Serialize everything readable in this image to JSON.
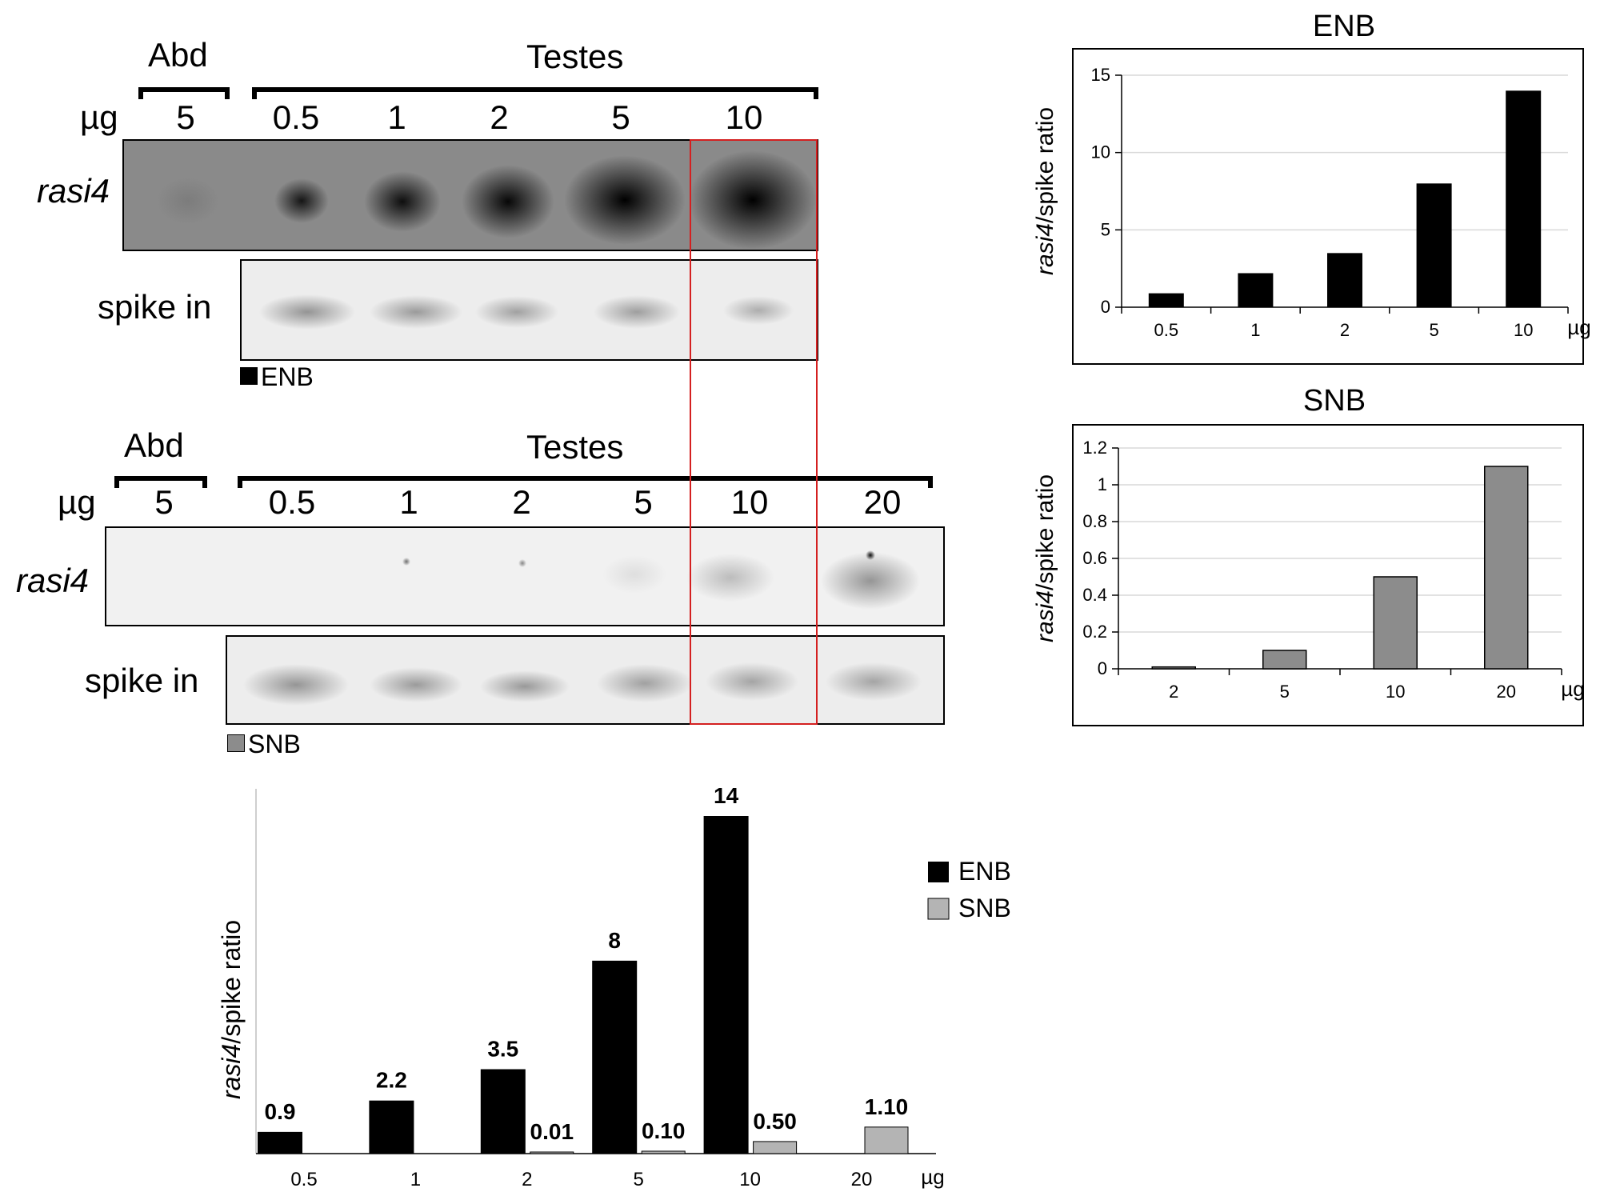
{
  "blot_enb": {
    "group_abd": "Abd",
    "group_testes": "Testes",
    "mass_label": "µg",
    "lanes": [
      "5",
      "0.5",
      "1",
      "2",
      "5",
      "10"
    ],
    "row_probe": "rasi4",
    "row_spike": "spike in",
    "legend": "ENB"
  },
  "blot_snb": {
    "group_abd": "Abd",
    "group_testes": "Testes",
    "mass_label": "µg",
    "lanes": [
      "5",
      "0.5",
      "1",
      "2",
      "5",
      "10",
      "20"
    ],
    "row_probe": "rasi4",
    "row_spike": "spike in",
    "legend": "SNB"
  },
  "colors": {
    "enb": "#000000",
    "snb": "#8c8c8c",
    "snb_light": "#b4b4b4",
    "highlight": "#d42020",
    "grid": "#d9d9d9"
  },
  "chart_data": [
    {
      "id": "enb_chart",
      "type": "bar",
      "title": "ENB",
      "categories": [
        "0.5",
        "1",
        "2",
        "5",
        "10"
      ],
      "values": [
        0.9,
        2.2,
        3.5,
        8,
        14
      ],
      "ylabel_italic": "rasi4",
      "ylabel_rest": "/spike ratio",
      "xunit": "µg",
      "yticks": [
        0,
        5,
        10,
        15
      ],
      "ytick_labels": [
        "0",
        "5",
        "10",
        "15"
      ],
      "ylim": [
        0,
        15
      ],
      "grid": true
    },
    {
      "id": "snb_chart",
      "type": "bar",
      "title": "SNB",
      "categories": [
        "2",
        "5",
        "10",
        "20"
      ],
      "values": [
        0.01,
        0.1,
        0.5,
        1.1
      ],
      "ylabel_italic": "rasi4",
      "ylabel_rest": "/spike ratio",
      "xunit": "µg",
      "yticks": [
        0,
        0.2,
        0.4,
        0.6,
        0.8,
        1,
        1.2
      ],
      "ytick_labels": [
        "0",
        "0.2",
        "0.4",
        "0.6",
        "0.8",
        "1",
        "1.2"
      ],
      "ylim": [
        0,
        1.2
      ],
      "grid": true
    },
    {
      "id": "combined_chart",
      "type": "bar",
      "categories": [
        "0.5",
        "1",
        "2",
        "5",
        "10",
        "20"
      ],
      "xunit": "µg",
      "ylabel_italic": "rasi4",
      "ylabel_rest": "/spike ratio",
      "ylim": [
        0,
        14
      ],
      "series": [
        {
          "name": "ENB",
          "values": [
            0.9,
            2.2,
            3.5,
            8,
            14,
            null
          ],
          "labels": [
            "0.9",
            "2.2",
            "3.5",
            "8",
            "14",
            ""
          ]
        },
        {
          "name": "SNB",
          "values": [
            null,
            null,
            0.01,
            0.1,
            0.5,
            1.1
          ],
          "labels": [
            "",
            "",
            "0.01",
            "0.10",
            "0.50",
            "1.10"
          ]
        }
      ],
      "legend": [
        "ENB",
        "SNB"
      ],
      "legend_position": "right"
    }
  ]
}
